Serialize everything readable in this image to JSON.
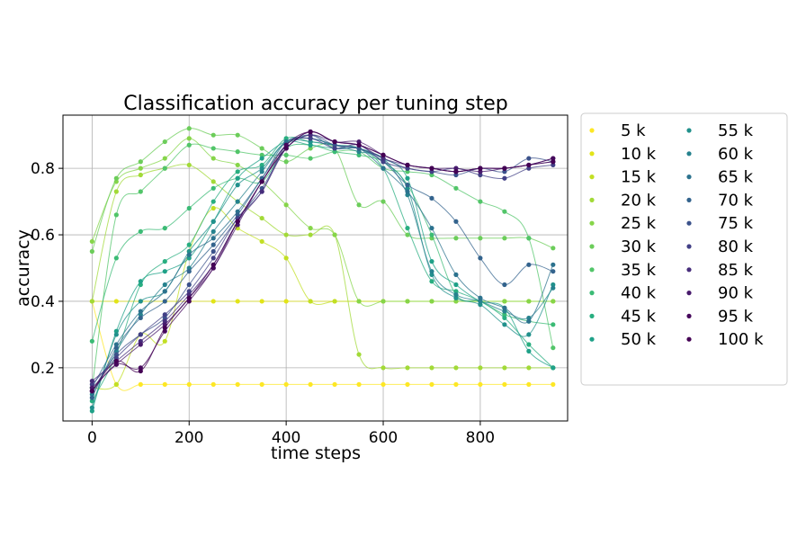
{
  "chart_data": {
    "type": "line",
    "title": "Classification accuracy per tuning step",
    "xlabel": "time steps",
    "ylabel": "accuracy",
    "xlim": [
      -60,
      980
    ],
    "ylim": [
      0.04,
      0.96
    ],
    "xticks": [
      0,
      200,
      400,
      600,
      800
    ],
    "yticks": [
      0.2,
      0.4,
      0.6,
      0.8
    ],
    "grid": true,
    "legend_position": "outside-right",
    "legend_columns": 2,
    "x": [
      0,
      50,
      100,
      150,
      200,
      250,
      300,
      350,
      400,
      450,
      500,
      550,
      600,
      650,
      700,
      750,
      800,
      850,
      900,
      950
    ],
    "series": [
      {
        "name": "5 k",
        "color": "#fde725",
        "values": [
          0.4,
          0.15,
          0.15,
          0.15,
          0.15,
          0.15,
          0.15,
          0.15,
          0.15,
          0.15,
          0.15,
          0.15,
          0.15,
          0.15,
          0.15,
          0.15,
          0.15,
          0.15,
          0.15,
          0.15
        ]
      },
      {
        "name": "10 k",
        "color": "#e2e418",
        "values": [
          0.4,
          0.4,
          0.4,
          0.4,
          0.4,
          0.4,
          0.4,
          0.4,
          0.4,
          0.4,
          0.4,
          0.4,
          0.4,
          0.4,
          0.4,
          0.4,
          0.4,
          0.4,
          0.4,
          0.4
        ]
      },
      {
        "name": "15 k",
        "color": "#c2df23",
        "values": [
          0.14,
          0.15,
          0.3,
          0.28,
          0.55,
          0.68,
          0.62,
          0.58,
          0.53,
          0.4,
          0.4,
          0.4,
          0.4,
          0.4,
          0.4,
          0.4,
          0.4,
          0.4,
          0.4,
          0.4
        ]
      },
      {
        "name": "20 k",
        "color": "#a2da37",
        "values": [
          0.4,
          0.73,
          0.78,
          0.8,
          0.81,
          0.76,
          0.7,
          0.65,
          0.6,
          0.6,
          0.6,
          0.24,
          0.2,
          0.2,
          0.2,
          0.2,
          0.2,
          0.2,
          0.2,
          0.2
        ]
      },
      {
        "name": "25 k",
        "color": "#86d549",
        "values": [
          0.58,
          0.76,
          0.8,
          0.83,
          0.89,
          0.83,
          0.81,
          0.76,
          0.69,
          0.62,
          0.6,
          0.4,
          0.4,
          0.4,
          0.4,
          0.4,
          0.4,
          0.4,
          0.4,
          0.4
        ]
      },
      {
        "name": "30 k",
        "color": "#6ccd5a",
        "values": [
          0.55,
          0.77,
          0.82,
          0.88,
          0.92,
          0.9,
          0.9,
          0.86,
          0.82,
          0.86,
          0.86,
          0.69,
          0.7,
          0.6,
          0.59,
          0.59,
          0.59,
          0.59,
          0.59,
          0.56
        ]
      },
      {
        "name": "35 k",
        "color": "#52c569",
        "values": [
          0.14,
          0.66,
          0.73,
          0.8,
          0.87,
          0.86,
          0.85,
          0.84,
          0.84,
          0.83,
          0.85,
          0.85,
          0.8,
          0.79,
          0.78,
          0.74,
          0.7,
          0.67,
          0.59,
          0.26
        ]
      },
      {
        "name": "40 k",
        "color": "#3bbb75",
        "values": [
          0.28,
          0.53,
          0.61,
          0.62,
          0.68,
          0.74,
          0.77,
          0.76,
          0.86,
          0.87,
          0.85,
          0.84,
          0.82,
          0.75,
          0.6,
          0.42,
          0.4,
          0.36,
          0.34,
          0.33
        ]
      },
      {
        "name": "45 k",
        "color": "#28ae80",
        "values": [
          0.1,
          0.24,
          0.45,
          0.52,
          0.57,
          0.7,
          0.79,
          0.81,
          0.89,
          0.88,
          0.87,
          0.86,
          0.8,
          0.62,
          0.46,
          0.43,
          0.4,
          0.35,
          0.27,
          0.2
        ]
      },
      {
        "name": "50 k",
        "color": "#1fa188",
        "values": [
          0.07,
          0.31,
          0.46,
          0.49,
          0.53,
          0.64,
          0.77,
          0.83,
          0.88,
          0.87,
          0.86,
          0.86,
          0.83,
          0.77,
          0.52,
          0.45,
          0.4,
          0.38,
          0.25,
          0.2
        ]
      },
      {
        "name": "55 k",
        "color": "#21918c",
        "values": [
          0.08,
          0.3,
          0.4,
          0.43,
          0.55,
          0.64,
          0.75,
          0.8,
          0.88,
          0.88,
          0.87,
          0.86,
          0.82,
          0.74,
          0.48,
          0.41,
          0.39,
          0.33,
          0.3,
          0.45
        ]
      },
      {
        "name": "60 k",
        "color": "#26828e",
        "values": [
          0.12,
          0.25,
          0.36,
          0.45,
          0.5,
          0.61,
          0.7,
          0.79,
          0.88,
          0.89,
          0.87,
          0.85,
          0.83,
          0.72,
          0.49,
          0.42,
          0.4,
          0.37,
          0.35,
          0.44
        ]
      },
      {
        "name": "65 k",
        "color": "#2c728e",
        "values": [
          0.14,
          0.27,
          0.37,
          0.43,
          0.54,
          0.59,
          0.67,
          0.77,
          0.88,
          0.89,
          0.87,
          0.86,
          0.8,
          0.73,
          0.62,
          0.48,
          0.41,
          0.38,
          0.34,
          0.51
        ]
      },
      {
        "name": "70 k",
        "color": "#33638d",
        "values": [
          0.11,
          0.26,
          0.35,
          0.4,
          0.49,
          0.57,
          0.66,
          0.77,
          0.87,
          0.9,
          0.86,
          0.86,
          0.82,
          0.75,
          0.71,
          0.64,
          0.53,
          0.45,
          0.51,
          0.49
        ]
      },
      {
        "name": "75 k",
        "color": "#3b528b",
        "values": [
          0.13,
          0.24,
          0.3,
          0.35,
          0.45,
          0.55,
          0.65,
          0.74,
          0.86,
          0.9,
          0.87,
          0.86,
          0.83,
          0.8,
          0.79,
          0.78,
          0.8,
          0.79,
          0.83,
          0.82
        ]
      },
      {
        "name": "80 k",
        "color": "#424086",
        "values": [
          0.15,
          0.23,
          0.3,
          0.36,
          0.43,
          0.53,
          0.65,
          0.73,
          0.87,
          0.89,
          0.86,
          0.87,
          0.82,
          0.8,
          0.79,
          0.8,
          0.78,
          0.77,
          0.8,
          0.81
        ]
      },
      {
        "name": "85 k",
        "color": "#472d7b",
        "values": [
          0.16,
          0.22,
          0.28,
          0.34,
          0.42,
          0.51,
          0.64,
          0.73,
          0.86,
          0.9,
          0.88,
          0.87,
          0.83,
          0.81,
          0.8,
          0.79,
          0.8,
          0.8,
          0.81,
          0.82
        ]
      },
      {
        "name": "90 k",
        "color": "#481a6c",
        "values": [
          0.14,
          0.21,
          0.27,
          0.33,
          0.41,
          0.5,
          0.63,
          0.76,
          0.86,
          0.91,
          0.88,
          0.88,
          0.84,
          0.81,
          0.8,
          0.8,
          0.79,
          0.8,
          0.81,
          0.83
        ]
      },
      {
        "name": "95 k",
        "color": "#46085c",
        "values": [
          0.13,
          0.21,
          0.2,
          0.31,
          0.4,
          0.5,
          0.64,
          0.76,
          0.87,
          0.91,
          0.88,
          0.87,
          0.84,
          0.81,
          0.8,
          0.79,
          0.8,
          0.8,
          0.81,
          0.83
        ]
      },
      {
        "name": "100 k",
        "color": "#440154",
        "values": [
          0.13,
          0.22,
          0.19,
          0.32,
          0.41,
          0.51,
          0.64,
          0.76,
          0.86,
          0.91,
          0.88,
          0.87,
          0.84,
          0.81,
          0.8,
          0.79,
          0.8,
          0.8,
          0.81,
          0.82
        ]
      }
    ]
  }
}
